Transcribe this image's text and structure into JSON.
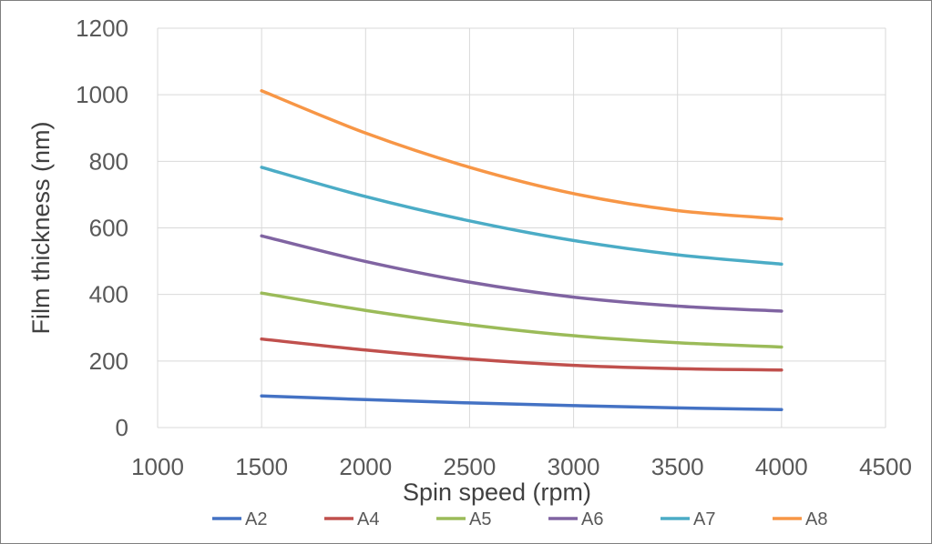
{
  "chart_data": {
    "type": "line",
    "title": "",
    "xlabel": "Spin speed (rpm)",
    "ylabel": "Film thickness (nm)",
    "xlim": [
      1000,
      4500
    ],
    "ylim": [
      0,
      1200
    ],
    "xticks": [
      "1000",
      "1500",
      "2000",
      "2500",
      "3000",
      "3500",
      "4000",
      "4500"
    ],
    "yticks": [
      "0",
      "200",
      "400",
      "600",
      "800",
      "1000",
      "1200"
    ],
    "grid": true,
    "legend_position": "bottom",
    "x": [
      1500,
      2000,
      2500,
      3000,
      3500,
      4000
    ],
    "series": [
      {
        "name": "A2",
        "color": "#4472C4",
        "values": [
          95,
          84,
          74,
          66,
          59,
          54
        ]
      },
      {
        "name": "A4",
        "color": "#C0504D",
        "values": [
          266,
          233,
          206,
          187,
          177,
          173
        ]
      },
      {
        "name": "A5",
        "color": "#9BBB59",
        "values": [
          404,
          352,
          309,
          276,
          255,
          242
        ]
      },
      {
        "name": "A6",
        "color": "#8064A2",
        "values": [
          576,
          499,
          437,
          392,
          365,
          350
        ]
      },
      {
        "name": "A7",
        "color": "#4BACC6",
        "values": [
          782,
          694,
          621,
          562,
          519,
          491
        ]
      },
      {
        "name": "A8",
        "color": "#F79646",
        "values": [
          1012,
          885,
          782,
          703,
          652,
          627
        ]
      }
    ]
  }
}
